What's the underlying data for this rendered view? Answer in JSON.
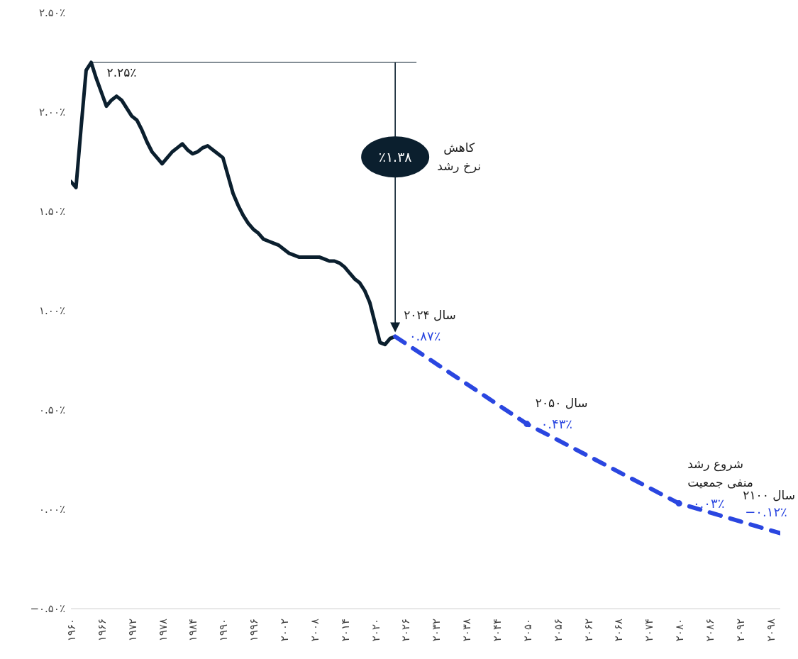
{
  "chart_data": {
    "type": "line",
    "xlim": [
      1960,
      2100
    ],
    "xticks": [
      {
        "value": 1960,
        "label": "۱۹۶۰"
      },
      {
        "value": 1966,
        "label": "۱۹۶۶"
      },
      {
        "value": 1972,
        "label": "۱۹۷۲"
      },
      {
        "value": 1978,
        "label": "۱۹۷۸"
      },
      {
        "value": 1984,
        "label": "۱۹۸۴"
      },
      {
        "value": 1990,
        "label": "۱۹۹۰"
      },
      {
        "value": 1996,
        "label": "۱۹۹۶"
      },
      {
        "value": 2002,
        "label": "۲۰۰۲"
      },
      {
        "value": 2008,
        "label": "۲۰۰۸"
      },
      {
        "value": 2014,
        "label": "۲۰۱۴"
      },
      {
        "value": 2020,
        "label": "۲۰۲۰"
      },
      {
        "value": 2026,
        "label": "۲۰۲۶"
      },
      {
        "value": 2032,
        "label": "۲۰۳۲"
      },
      {
        "value": 2038,
        "label": "۲۰۳۸"
      },
      {
        "value": 2044,
        "label": "۲۰۴۴"
      },
      {
        "value": 2050,
        "label": "۲۰۵۰"
      },
      {
        "value": 2056,
        "label": "۲۰۵۶"
      },
      {
        "value": 2062,
        "label": "۲۰۶۲"
      },
      {
        "value": 2068,
        "label": "۲۰۶۸"
      },
      {
        "value": 2074,
        "label": "۲۰۷۴"
      },
      {
        "value": 2080,
        "label": "۲۰۸۰"
      },
      {
        "value": 2086,
        "label": "۲۰۸۶"
      },
      {
        "value": 2092,
        "label": "۲۰۹۲"
      },
      {
        "value": 2098,
        "label": "۲۰۹۸"
      }
    ],
    "ylim": [
      -0.5,
      2.5
    ],
    "yticks": [
      {
        "value": -0.5,
        "label": "−۰.۵۰٪"
      },
      {
        "value": 0,
        "label": "۰.۰۰٪"
      },
      {
        "value": 0.5,
        "label": "۰.۵۰٪"
      },
      {
        "value": 1,
        "label": "۱.۰۰٪"
      },
      {
        "value": 1.5,
        "label": "۱.۵۰٪"
      },
      {
        "value": 2,
        "label": "۲.۰۰٪"
      },
      {
        "value": 2.5,
        "label": "۲.۵۰٪"
      }
    ],
    "series": [
      {
        "color": "#0b1f2e",
        "line_style": "solid",
        "marker": "none",
        "x": [
          1960,
          1961,
          1962,
          1963,
          1964,
          1965,
          1966,
          1967,
          1968,
          1969,
          1970,
          1971,
          1972,
          1973,
          1974,
          1975,
          1976,
          1977,
          1978,
          1979,
          1980,
          1981,
          1982,
          1983,
          1984,
          1985,
          1986,
          1987,
          1988,
          1989,
          1990,
          1991,
          1992,
          1993,
          1994,
          1995,
          1996,
          1997,
          1998,
          1999,
          2000,
          2001,
          2002,
          2003,
          2004,
          2005,
          2006,
          2007,
          2008,
          2009,
          2010,
          2011,
          2012,
          2013,
          2014,
          2015,
          2016,
          2017,
          2018,
          2019,
          2020,
          2021,
          2022,
          2023,
          2024
        ],
        "values": [
          1.65,
          1.62,
          1.92,
          2.21,
          2.25,
          2.17,
          2.1,
          2.03,
          2.06,
          2.08,
          2.06,
          2.02,
          1.98,
          1.96,
          1.91,
          1.85,
          1.8,
          1.77,
          1.74,
          1.77,
          1.8,
          1.82,
          1.84,
          1.81,
          1.79,
          1.8,
          1.82,
          1.83,
          1.81,
          1.79,
          1.77,
          1.68,
          1.59,
          1.53,
          1.48,
          1.44,
          1.41,
          1.39,
          1.36,
          1.35,
          1.34,
          1.33,
          1.31,
          1.29,
          1.28,
          1.27,
          1.27,
          1.27,
          1.27,
          1.27,
          1.26,
          1.25,
          1.25,
          1.24,
          1.22,
          1.19,
          1.16,
          1.14,
          1.1,
          1.04,
          0.94,
          0.84,
          0.83,
          0.86,
          0.87
        ]
      },
      {
        "color": "#2a46e0",
        "line_style": "dashed",
        "marker": "none",
        "x": [
          2024,
          2050,
          2080,
          2100
        ],
        "values": [
          0.87,
          0.43,
          0.03,
          -0.12
        ],
        "value_labels": [
          "۰.۸۷٪",
          "۰.۴۳٪",
          "۰.۰۳٪",
          "−۰.۱۲٪"
        ]
      },
      {
        "type": "scatter",
        "color": "#2a46e0",
        "marker": "circle",
        "x": [
          2050,
          2080
        ],
        "values": [
          0.43,
          0.03
        ]
      }
    ],
    "annotations": [
      {
        "text": "۲.۲۵٪",
        "x": 1964,
        "y": 2.25
      },
      "٪۱.۳۸",
      "کاهش\nنرخ رشد",
      {
        "text": "سال ۲۰۲۴",
        "x": 2024,
        "y": 0.87
      },
      {
        "text": "سال ۲۰۵۰",
        "x": 2050,
        "y": 0.43
      },
      {
        "text": "شروع رشد\nمنفی جمعیت",
        "x": 2080,
        "y": 0.03
      },
      {
        "text": "سال ۲۱۰۰",
        "x": 2100,
        "y": -0.12
      }
    ]
  }
}
